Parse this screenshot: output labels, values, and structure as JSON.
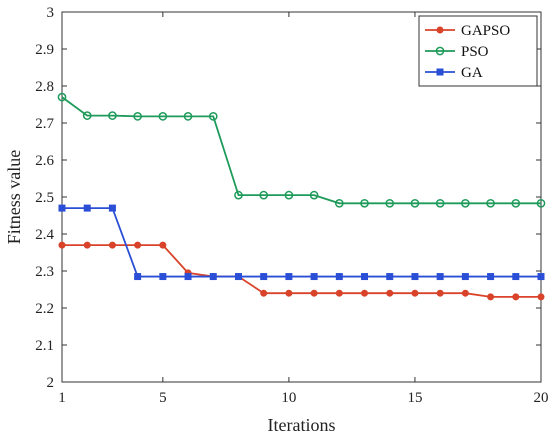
{
  "chart_data": {
    "type": "line",
    "title": "",
    "xlabel": "Iterations",
    "ylabel": "Fitness value",
    "xlim": [
      1,
      20
    ],
    "ylim": [
      2,
      3
    ],
    "xticks": [
      1,
      5,
      10,
      15,
      20
    ],
    "yticks": [
      2,
      2.1,
      2.2,
      2.3,
      2.4,
      2.5,
      2.6,
      2.7,
      2.8,
      2.9,
      3
    ],
    "x": [
      1,
      2,
      3,
      4,
      5,
      6,
      7,
      8,
      9,
      10,
      11,
      12,
      13,
      14,
      15,
      16,
      17,
      18,
      19,
      20
    ],
    "legend_position": "top-right",
    "grid": false,
    "series": [
      {
        "name": "GAPSO",
        "color": "#d9432a",
        "marker": "filled-circle",
        "values": [
          2.37,
          2.37,
          2.37,
          2.37,
          2.37,
          2.295,
          2.285,
          2.285,
          2.24,
          2.24,
          2.24,
          2.24,
          2.24,
          2.24,
          2.24,
          2.24,
          2.24,
          2.23,
          2.23,
          2.23
        ]
      },
      {
        "name": "PSO",
        "color": "#1e9a5a",
        "marker": "open-circle",
        "values": [
          2.77,
          2.72,
          2.72,
          2.718,
          2.718,
          2.718,
          2.718,
          2.505,
          2.505,
          2.505,
          2.505,
          2.483,
          2.483,
          2.483,
          2.483,
          2.483,
          2.483,
          2.483,
          2.483,
          2.483
        ]
      },
      {
        "name": "GA",
        "color": "#2a4fd6",
        "marker": "filled-square",
        "values": [
          2.47,
          2.47,
          2.47,
          2.285,
          2.285,
          2.285,
          2.285,
          2.285,
          2.285,
          2.285,
          2.285,
          2.285,
          2.285,
          2.285,
          2.285,
          2.285,
          2.285,
          2.285,
          2.285,
          2.285
        ]
      }
    ]
  }
}
